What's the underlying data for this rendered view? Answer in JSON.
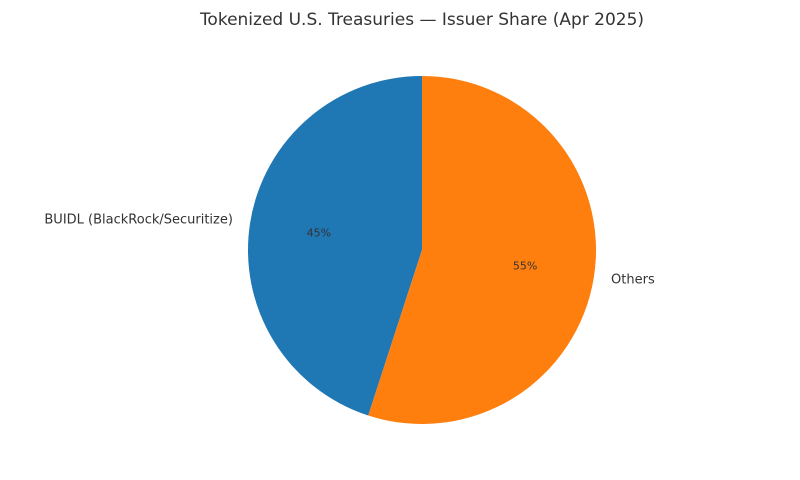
{
  "chart_data": {
    "type": "pie",
    "title": "Tokenized U.S. Treasuries — Issuer Share (Apr 2025)",
    "categories": [
      "BUIDL (BlackRock/Securitize)",
      "Others"
    ],
    "values": [
      45,
      55
    ],
    "value_labels": [
      "45%",
      "55%"
    ],
    "colors": [
      "#1f77b4",
      "#ff7f0e"
    ]
  }
}
